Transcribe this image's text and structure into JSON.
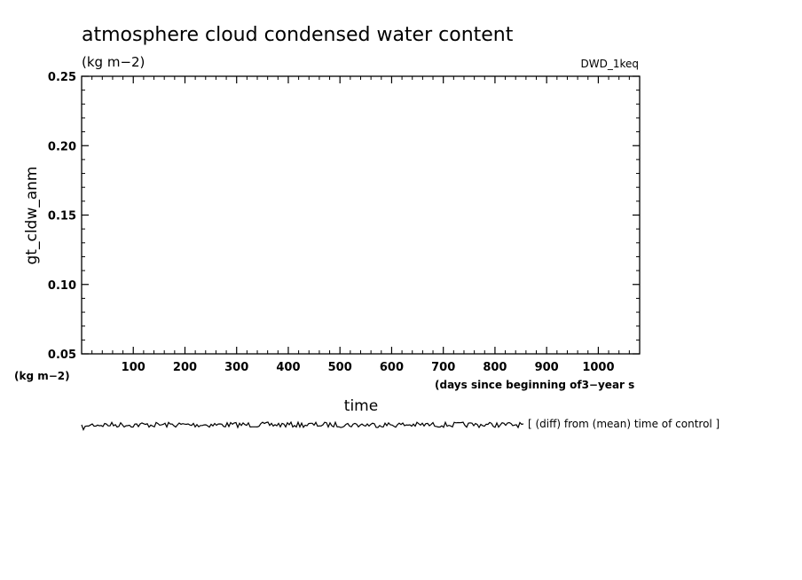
{
  "chart_data": {
    "type": "line",
    "title": "atmosphere cloud condensed water content",
    "units": "(kg m−2)",
    "experiment": "DWD_1keq",
    "ylabel": "gt_cldw_anm",
    "ylabel_units": "(kg m−2)",
    "xlabel": "time",
    "xlabel_note": "(days since beginning of3−year s",
    "overlay_label": "[ (diff) from (mean) time of control ]",
    "ylim": [
      0.05,
      0.25
    ],
    "xlim": [
      0,
      1080
    ],
    "yticks": [
      "0.05",
      "0.10",
      "0.15",
      "0.20",
      "0.25"
    ],
    "xticks": [
      "100",
      "200",
      "300",
      "400",
      "500",
      "600",
      "700",
      "800",
      "900",
      "1000"
    ],
    "grid": false,
    "series": [
      {
        "values_note": "series lies below the plotted y-range (not visible inside axes)"
      }
    ]
  }
}
